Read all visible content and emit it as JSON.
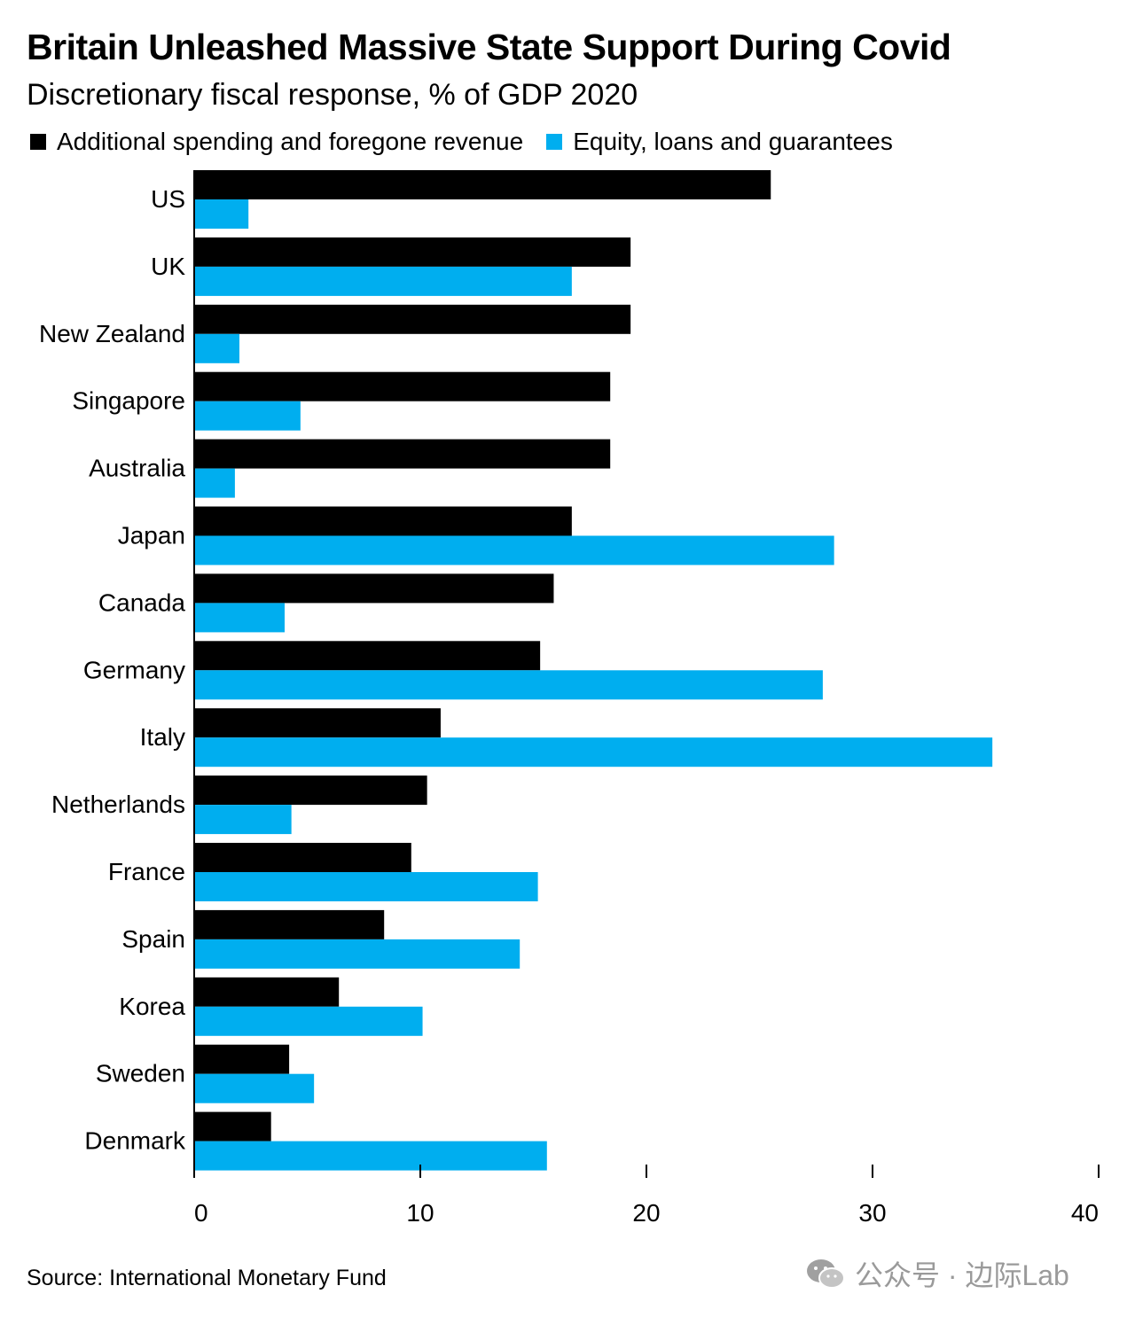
{
  "title": "Britain Unleashed Massive State Support During Covid",
  "subtitle": "Discretionary fiscal response, % of GDP 2020",
  "source": "Source: International Monetary Fund",
  "watermark": "公众号 · 边际Lab",
  "colors": {
    "spending": "#000000",
    "equity": "#00aeef",
    "axis": "#000000"
  },
  "chart_data": {
    "type": "bar",
    "orientation": "horizontal",
    "categories": [
      "US",
      "UK",
      "New Zealand",
      "Singapore",
      "Australia",
      "Japan",
      "Canada",
      "Germany",
      "Italy",
      "Netherlands",
      "France",
      "Spain",
      "Korea",
      "Sweden",
      "Denmark"
    ],
    "series": [
      {
        "name": "Additional spending and foregone revenue",
        "values": [
          25.5,
          19.3,
          19.3,
          18.4,
          18.4,
          16.7,
          15.9,
          15.3,
          10.9,
          10.3,
          9.6,
          8.4,
          6.4,
          4.2,
          3.4
        ]
      },
      {
        "name": "Equity, loans and guarantees",
        "values": [
          2.4,
          16.7,
          2.0,
          4.7,
          1.8,
          28.3,
          4.0,
          27.8,
          35.3,
          4.3,
          15.2,
          14.4,
          10.1,
          5.3,
          15.6
        ]
      }
    ],
    "xlim": [
      0,
      40
    ],
    "xticks": [
      0,
      10,
      20,
      30,
      40
    ],
    "grid": false,
    "legend_position": "top-left"
  }
}
